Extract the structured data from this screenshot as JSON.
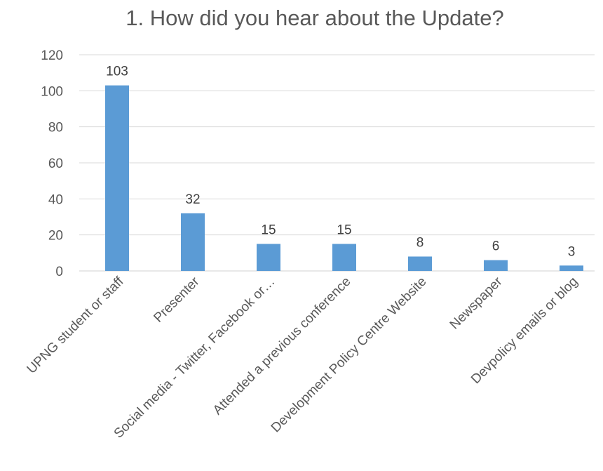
{
  "chart_data": {
    "type": "bar",
    "title": "1. How did you hear about the Update?",
    "categories": [
      "UPNG student or staff",
      "Presenter",
      "Social media - Twitter, Facebook or…",
      "Attended a previous conference",
      "Development Policy Centre Website",
      "Newspaper",
      "Devpolicy emails or blog"
    ],
    "values": [
      103,
      32,
      15,
      15,
      8,
      6,
      3
    ],
    "yticks": [
      "0",
      "20",
      "40",
      "60",
      "80",
      "100",
      "120"
    ],
    "ylim": [
      0,
      120
    ],
    "xlabel": "",
    "ylabel": "",
    "grid": true,
    "legend": "none",
    "data_labels": true,
    "bar_color": "#5b9bd5"
  }
}
